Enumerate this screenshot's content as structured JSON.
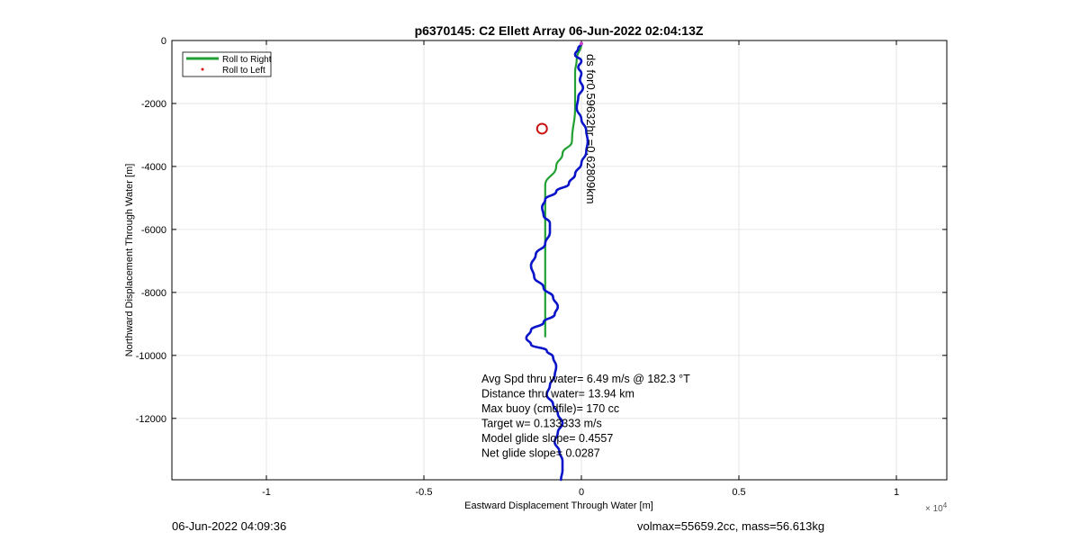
{
  "chart_data": {
    "type": "line",
    "title": "p6370145: C2 Ellett Array 06-Jun-2022 02:04:13Z",
    "xlabel": "Eastward Displacement Through Water [m]",
    "ylabel": "Northward Displacement Through Water [m]",
    "xlim": [
      -1.3,
      1.16
    ],
    "ylim": [
      -13950,
      0
    ],
    "x_exponent_label": "× 10",
    "x_exponent_power": "4",
    "x_ticks": [
      {
        "value": -1,
        "label": "-1"
      },
      {
        "value": -0.5,
        "label": "-0.5"
      },
      {
        "value": 0,
        "label": "0"
      },
      {
        "value": 0.5,
        "label": "0.5"
      },
      {
        "value": 1,
        "label": "1"
      }
    ],
    "y_ticks": [
      {
        "value": 0,
        "label": "0"
      },
      {
        "value": -2000,
        "label": "-2000"
      },
      {
        "value": -4000,
        "label": "-4000"
      },
      {
        "value": -6000,
        "label": "-6000"
      },
      {
        "value": -8000,
        "label": "-8000"
      },
      {
        "value": -10000,
        "label": "-10000"
      },
      {
        "value": -12000,
        "label": "-12000"
      }
    ],
    "grid": true,
    "legend": {
      "placement": "top-left",
      "entries": [
        {
          "label": "Roll to Right",
          "color": "#22a033",
          "style": "line"
        },
        {
          "label": "Roll to Left",
          "color": "#dd1111",
          "style": "dot"
        }
      ]
    },
    "series": [
      {
        "name": "",
        "color": "#0a14c8",
        "x": [
          0.0,
          -0.01,
          -0.02,
          0.0,
          -0.01,
          0.0,
          -0.005,
          0.005,
          -0.01,
          -0.015,
          0.0,
          0.015,
          0.02,
          0.015,
          0.0,
          -0.02,
          -0.04,
          -0.08,
          -0.115,
          -0.125,
          -0.12,
          -0.1,
          -0.1,
          -0.115,
          -0.145,
          -0.16,
          -0.15,
          -0.12,
          -0.09,
          -0.075,
          -0.085,
          -0.12,
          -0.16,
          -0.175,
          -0.16,
          -0.11,
          -0.09,
          -0.08,
          -0.085,
          -0.1,
          -0.11,
          -0.09,
          -0.075,
          -0.06,
          -0.075,
          -0.085,
          -0.07,
          -0.06,
          -0.06,
          -0.065
        ],
        "y": [
          -100,
          -250,
          -450,
          -650,
          -850,
          -1050,
          -1250,
          -1500,
          -1800,
          -2150,
          -2500,
          -2850,
          -3200,
          -3550,
          -3900,
          -4250,
          -4550,
          -4800,
          -5050,
          -5300,
          -5550,
          -5800,
          -6100,
          -6450,
          -6800,
          -7150,
          -7500,
          -7850,
          -8150,
          -8450,
          -8700,
          -8950,
          -9200,
          -9450,
          -9650,
          -9850,
          -10050,
          -10350,
          -10650,
          -10950,
          -11250,
          -11550,
          -11850,
          -12150,
          -12450,
          -12750,
          -13050,
          -13350,
          -13650,
          -13950
        ]
      },
      {
        "name": "",
        "color": "#22a033",
        "x": [
          0.0,
          -0.015,
          -0.02,
          -0.02,
          -0.03,
          -0.06,
          -0.08,
          -0.115,
          -0.115,
          -0.115
        ],
        "y": [
          -100,
          -600,
          -1000,
          -2150,
          -3200,
          -3600,
          -4000,
          -4600,
          -5800,
          -9400
        ]
      }
    ],
    "markers": [
      {
        "label": "circle",
        "x": -0.125,
        "y": -2800,
        "color": "#c81414"
      }
    ],
    "path_label": "ds for0.59632hr =0.62809km",
    "annotations": [
      "Avg Spd thru water=  6.49 m/s @ 182.3 °T",
      "Distance thru water= 13.94 km",
      "Max buoy (cmdfile)= 170 cc",
      "Target w= 0.133333 m/s",
      "Model glide slope= 0.4557",
      "Net glide slope= 0.0287"
    ]
  },
  "footer": {
    "left": "06-Jun-2022 04:09:36",
    "right": "volmax=55659.2cc, mass=56.613kg"
  }
}
